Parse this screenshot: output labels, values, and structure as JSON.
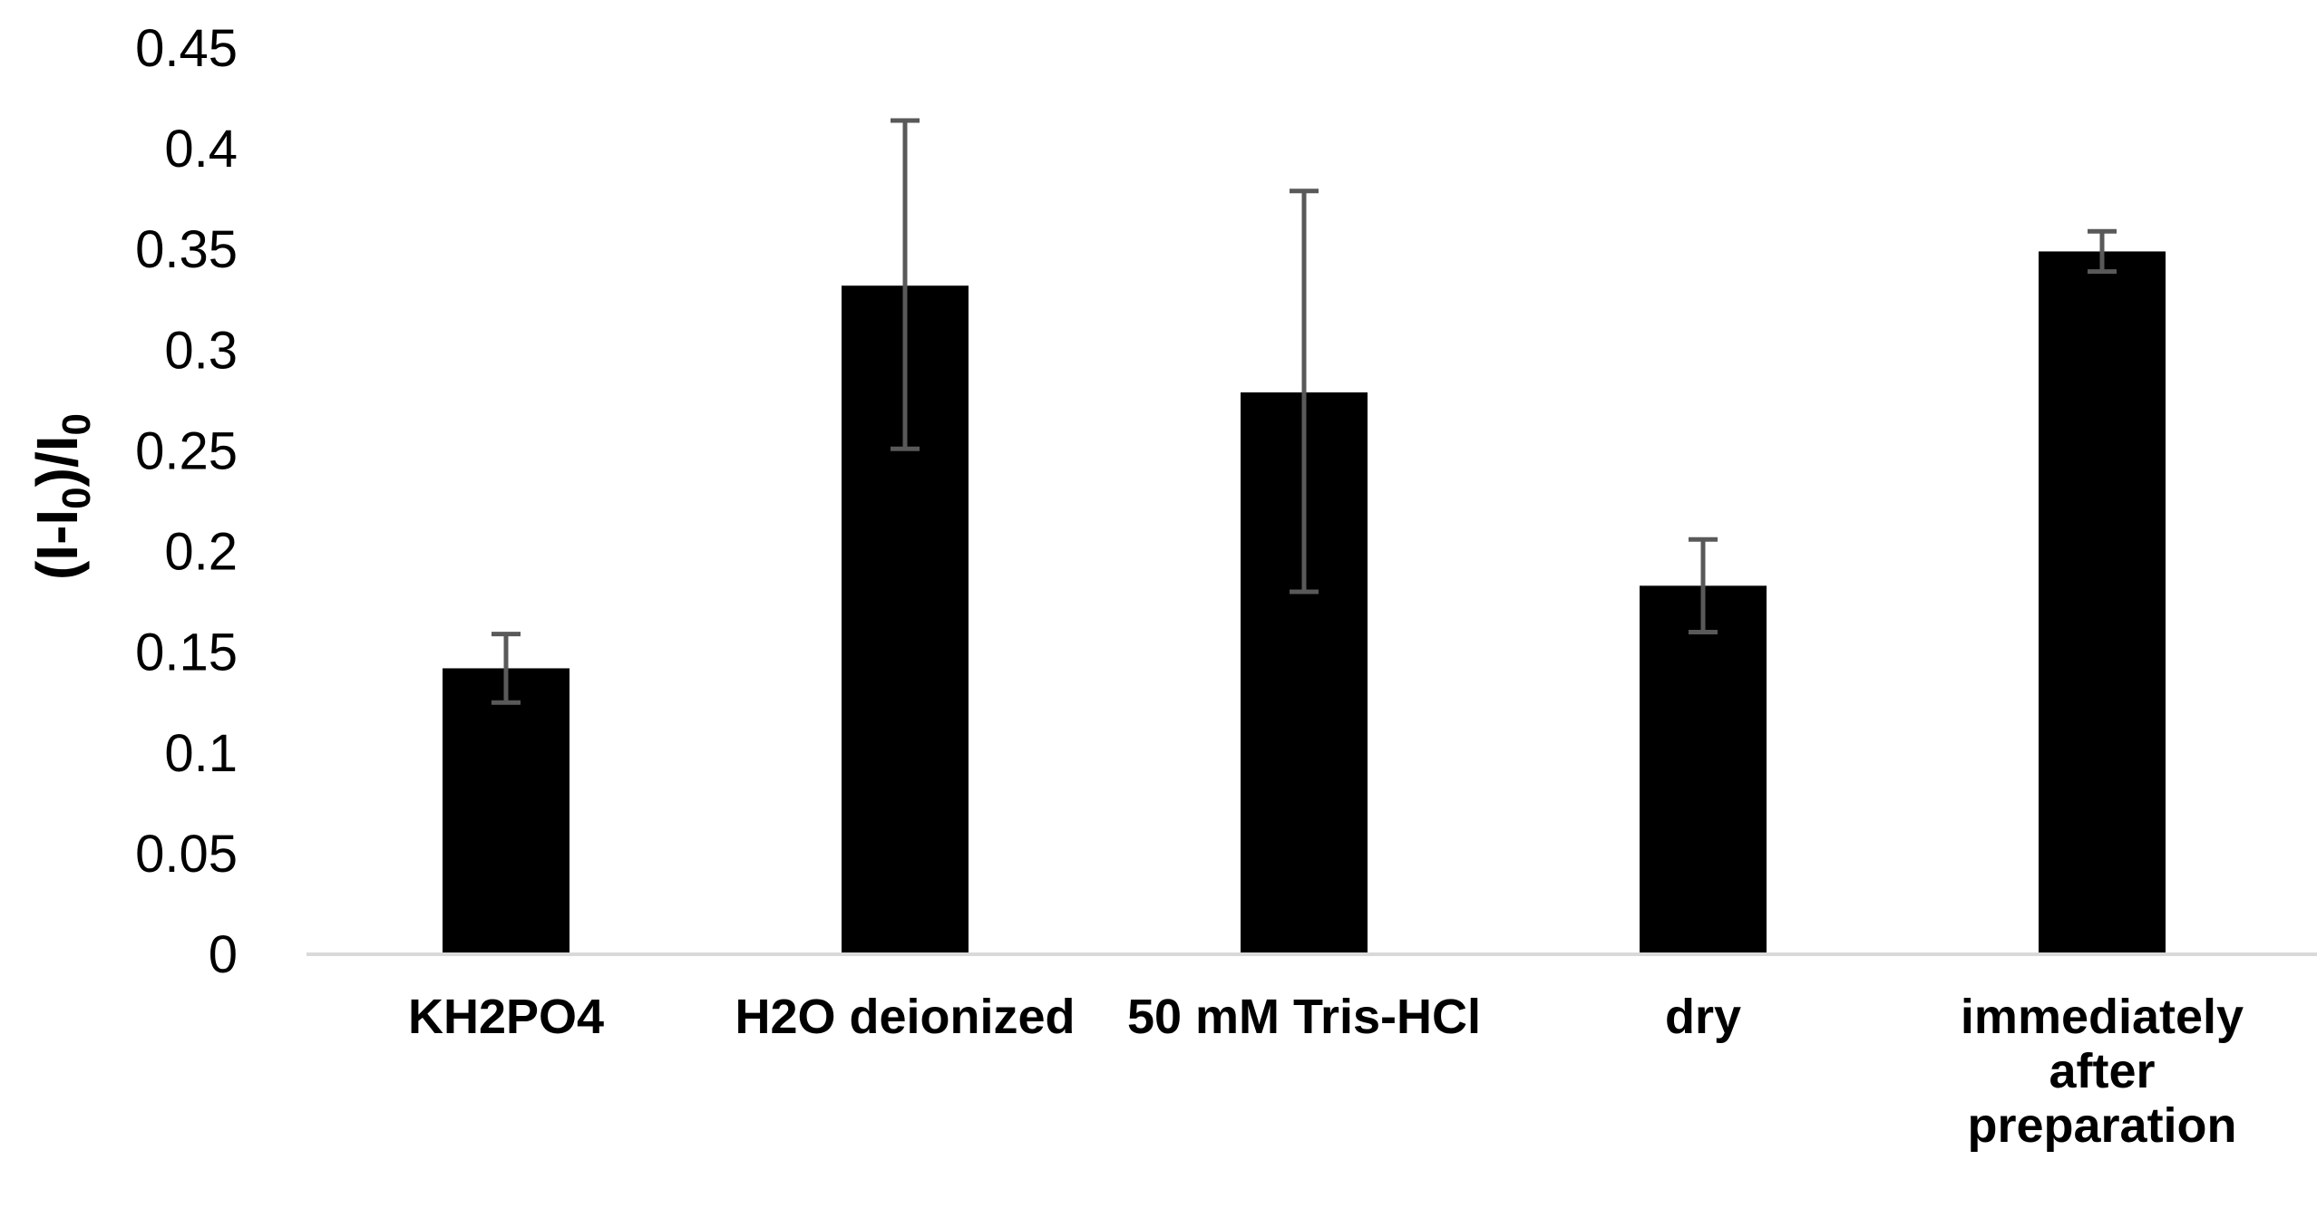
{
  "chart_data": {
    "type": "bar",
    "categories": [
      [
        "KH2PO4"
      ],
      [
        "H2O deionized"
      ],
      [
        "50 mM Tris-HCl"
      ],
      [
        "dry"
      ],
      [
        "immediately",
        "after",
        "preparation"
      ]
    ],
    "values": [
      0.142,
      0.332,
      0.279,
      0.183,
      0.349
    ],
    "error_low": [
      0.125,
      0.251,
      0.18,
      0.16,
      0.339
    ],
    "error_high": [
      0.159,
      0.414,
      0.379,
      0.206,
      0.359
    ],
    "ylim": [
      0,
      0.45
    ],
    "yticks": [
      "0",
      "0.05",
      "0.1",
      "0.15",
      "0.2",
      "0.25",
      "0.3",
      "0.35",
      "0.4",
      "0.45"
    ],
    "ylabel": {
      "main": "(I-I",
      "sub1": "0",
      "mid": ")/I",
      "sub2": "0"
    },
    "xlabel": "",
    "title": "",
    "grid": false,
    "legend": "none",
    "bar_color": "#000000",
    "error_bar_color": "#595959",
    "axis_color": "#d9d9d9"
  }
}
